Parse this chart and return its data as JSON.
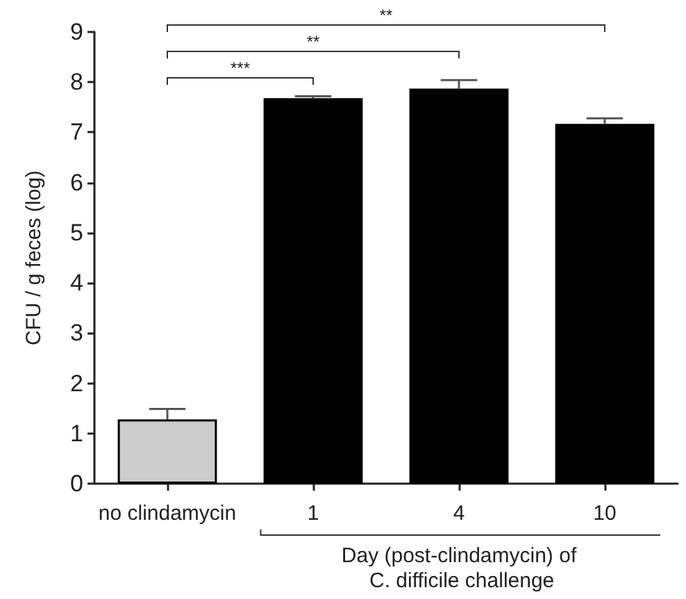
{
  "chart_data": {
    "type": "bar",
    "ylabel": "CFU / g feces (log)",
    "xlabel": "Day (post-clindamycin) of C. difficile challenge",
    "categories": [
      "no clindamycin",
      "1",
      "4",
      "10"
    ],
    "values": [
      1.28,
      7.68,
      7.87,
      7.17
    ],
    "errors": [
      [
        1.28,
        1.49
      ],
      [
        7.68,
        7.72
      ],
      [
        7.87,
        8.04
      ],
      [
        7.17,
        7.28
      ]
    ],
    "colors": [
      "#cccccc",
      "#000000",
      "#000000",
      "#000000"
    ],
    "ylim": [
      0,
      9
    ],
    "yticks": [
      0,
      1,
      2,
      3,
      4,
      5,
      6,
      7,
      8,
      9
    ],
    "grid": false,
    "annotations": [
      "***",
      "**",
      "**"
    ]
  }
}
